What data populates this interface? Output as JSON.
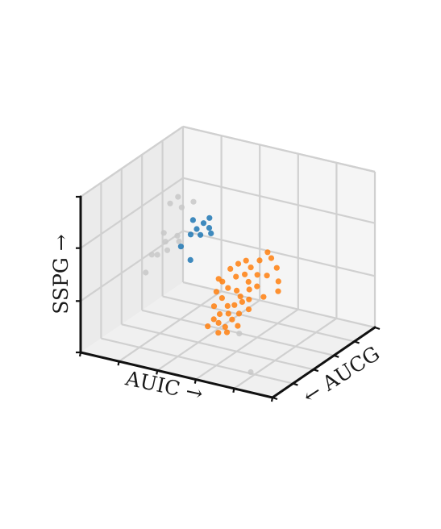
{
  "chart_data": {
    "type": "scatter",
    "projection": "3d",
    "title": "",
    "xlabel": "AUIC →",
    "ylabel": "← AUCG",
    "zlabel": "SSPG →",
    "tick_labels": "none",
    "grid": true,
    "colors": {
      "gray": "#c8c8c8",
      "blue": "#1f77b4",
      "orange": "#ff7f0e",
      "pane": "#f2f2f2",
      "grid": "#d0d0d0",
      "axis": "#111111"
    },
    "groups": [
      {
        "color": "gray",
        "points": [
          [
            0.05,
            0.78,
            0.62
          ],
          [
            0.07,
            0.82,
            0.65
          ],
          [
            0.1,
            0.8,
            0.6
          ],
          [
            0.14,
            0.84,
            0.63
          ],
          [
            0.06,
            0.7,
            0.47
          ],
          [
            0.09,
            0.66,
            0.44
          ],
          [
            0.12,
            0.72,
            0.46
          ],
          [
            0.15,
            0.68,
            0.45
          ],
          [
            0.04,
            0.62,
            0.36
          ],
          [
            0.08,
            0.6,
            0.38
          ],
          [
            0.11,
            0.64,
            0.4
          ],
          [
            0.03,
            0.58,
            0.26
          ],
          [
            0.72,
            0.2,
            0.24
          ],
          [
            0.86,
            0.05,
            0.1
          ]
        ]
      },
      {
        "color": "blue",
        "points": [
          [
            0.18,
            0.76,
            0.56
          ],
          [
            0.21,
            0.74,
            0.52
          ],
          [
            0.23,
            0.77,
            0.55
          ],
          [
            0.25,
            0.79,
            0.58
          ],
          [
            0.27,
            0.75,
            0.54
          ],
          [
            0.24,
            0.72,
            0.5
          ],
          [
            0.29,
            0.73,
            0.52
          ],
          [
            0.2,
            0.7,
            0.5
          ],
          [
            0.16,
            0.68,
            0.42
          ],
          [
            0.22,
            0.66,
            0.36
          ]
        ]
      },
      {
        "color": "orange",
        "points": [
          [
            0.48,
            0.64,
            0.42
          ],
          [
            0.51,
            0.66,
            0.44
          ],
          [
            0.54,
            0.65,
            0.41
          ],
          [
            0.57,
            0.68,
            0.45
          ],
          [
            0.46,
            0.6,
            0.4
          ],
          [
            0.5,
            0.58,
            0.37
          ],
          [
            0.53,
            0.61,
            0.38
          ],
          [
            0.56,
            0.59,
            0.35
          ],
          [
            0.59,
            0.62,
            0.39
          ],
          [
            0.44,
            0.56,
            0.33
          ],
          [
            0.48,
            0.54,
            0.31
          ],
          [
            0.52,
            0.55,
            0.3
          ],
          [
            0.55,
            0.53,
            0.28
          ],
          [
            0.58,
            0.56,
            0.32
          ],
          [
            0.61,
            0.58,
            0.34
          ],
          [
            0.47,
            0.5,
            0.26
          ],
          [
            0.51,
            0.48,
            0.23
          ],
          [
            0.54,
            0.49,
            0.24
          ],
          [
            0.57,
            0.51,
            0.26
          ],
          [
            0.6,
            0.52,
            0.28
          ],
          [
            0.45,
            0.46,
            0.22
          ],
          [
            0.49,
            0.44,
            0.19
          ],
          [
            0.53,
            0.45,
            0.2
          ],
          [
            0.56,
            0.43,
            0.18
          ],
          [
            0.5,
            0.41,
            0.15
          ],
          [
            0.54,
            0.4,
            0.14
          ],
          [
            0.47,
            0.42,
            0.16
          ],
          [
            0.58,
            0.46,
            0.21
          ],
          [
            0.62,
            0.48,
            0.24
          ],
          [
            0.43,
            0.52,
            0.28
          ],
          [
            0.64,
            0.62,
            0.4
          ],
          [
            0.67,
            0.66,
            0.44
          ],
          [
            0.7,
            0.62,
            0.38
          ],
          [
            0.72,
            0.58,
            0.34
          ],
          [
            0.66,
            0.55,
            0.3
          ],
          [
            0.62,
            0.7,
            0.47
          ],
          [
            0.59,
            0.72,
            0.49
          ],
          [
            0.41,
            0.58,
            0.33
          ],
          [
            0.52,
            0.37,
            0.11
          ],
          [
            0.56,
            0.38,
            0.12
          ],
          [
            0.6,
            0.41,
            0.16
          ],
          [
            0.46,
            0.38,
            0.13
          ]
        ]
      }
    ]
  }
}
